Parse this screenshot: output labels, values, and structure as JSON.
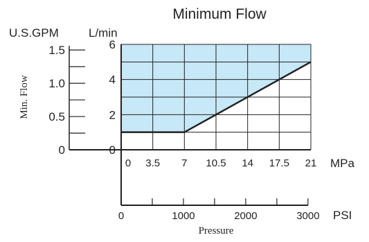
{
  "chart_data": {
    "type": "line",
    "title": "Minimum Flow",
    "left_axis_label": "U.S.GPM",
    "inner_axis_label": "L/min",
    "ylabel": "Min. Flow",
    "xlabel": "Pressure",
    "mpa_unit": "MPa",
    "psi_unit": "PSI",
    "gpm_ticks": [
      "0",
      "0.5",
      "1.0",
      "1.5"
    ],
    "gpm_values": [
      0,
      0.5,
      1.0,
      1.5
    ],
    "lmin_ticks": [
      "0",
      "2",
      "4",
      "6"
    ],
    "lmin_values": [
      0,
      2,
      4,
      6
    ],
    "mpa_ticks": [
      "0",
      "3.5",
      "7",
      "10.5",
      "14",
      "17.5",
      "21"
    ],
    "mpa_values": [
      0,
      3.5,
      7,
      10.5,
      14,
      17.5,
      21
    ],
    "psi_ticks": [
      "0",
      "1000",
      "2000",
      "3000"
    ],
    "psi_values": [
      0,
      1000,
      2000,
      3000
    ],
    "xlim_mpa": [
      0,
      21
    ],
    "ylim_lmin": [
      0,
      6
    ],
    "grid": true,
    "series": [
      {
        "x_mpa": [
          0,
          7,
          21
        ],
        "y_lmin": [
          1,
          1,
          5
        ]
      }
    ],
    "colors": {
      "fill": "#c6e8f7",
      "line": "#231f20",
      "grid": "#231f20"
    }
  }
}
